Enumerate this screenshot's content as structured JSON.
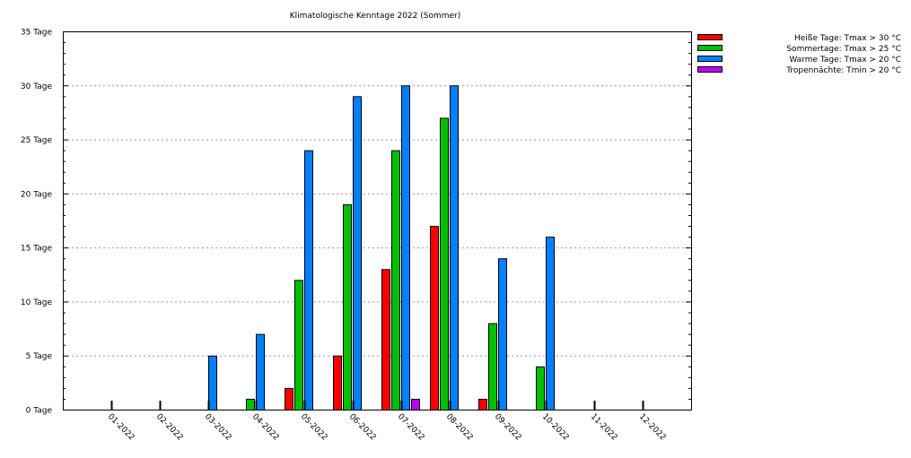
{
  "chart_data": {
    "type": "bar",
    "title": "Klimatologische Kenntage 2022 (Sommer)",
    "xlabel": "",
    "ylabel": "",
    "ylim": [
      0,
      35
    ],
    "y_ticks": [
      0,
      5,
      10,
      15,
      20,
      25,
      30,
      35
    ],
    "y_tick_suffix": " Tage",
    "y_tick_labels": [
      "0 Tage",
      "5 Tage",
      "10 Tage",
      "15 Tage",
      "20 Tage",
      "25 Tage",
      "30 Tage",
      "35 Tage"
    ],
    "grid": true,
    "legend_position": "right",
    "categories": [
      "01-2022",
      "02-2022",
      "03-2022",
      "04-2022",
      "05-2022",
      "06-2022",
      "07-2022",
      "08-2022",
      "09-2022",
      "10-2022",
      "11-2022",
      "12-2022"
    ],
    "series": [
      {
        "name": "Heiße Tage: Tmax > 30 °C",
        "color": "#ff0000",
        "values": [
          0,
          0,
          0,
          0,
          2,
          5,
          13,
          17,
          1,
          0,
          0,
          0
        ]
      },
      {
        "name": "Sommertage: Tmax > 25 °C",
        "color": "#00c000",
        "values": [
          0,
          0,
          0,
          1,
          12,
          19,
          24,
          27,
          8,
          4,
          0,
          0
        ]
      },
      {
        "name": "Warme Tage: Tmax > 20 °C",
        "color": "#0080ff",
        "values": [
          0,
          0,
          5,
          7,
          24,
          29,
          30,
          30,
          14,
          16,
          0,
          0
        ]
      },
      {
        "name": "Tropennächte: Tmin > 20 °C",
        "color": "#c000ff",
        "values": [
          0,
          0,
          0,
          0,
          0,
          0,
          1,
          0,
          0,
          0,
          0,
          0
        ]
      }
    ]
  }
}
